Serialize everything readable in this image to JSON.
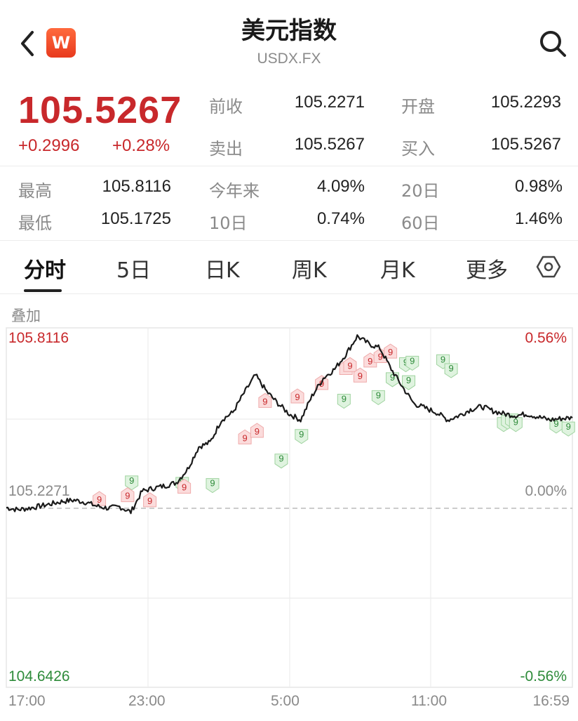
{
  "header": {
    "title": "美元指数",
    "subtitle": "USDX.FX",
    "logo_text": "W"
  },
  "quote": {
    "price": "105.5267",
    "change": "+0.2996",
    "change_pct": "+0.28%",
    "prev_close_label": "前收",
    "prev_close": "105.2271",
    "open_label": "开盘",
    "open": "105.2293",
    "ask_label": "卖出",
    "ask": "105.5267",
    "bid_label": "买入",
    "bid": "105.5267"
  },
  "stats": {
    "high_label": "最高",
    "high": "105.8116",
    "ytd_label": "今年来",
    "ytd": "4.09%",
    "d20_label": "20日",
    "d20": "0.98%",
    "low_label": "最低",
    "low": "105.1725",
    "d10_label": "10日",
    "d10": "0.74%",
    "d60_label": "60日",
    "d60": "1.46%"
  },
  "tabs": [
    {
      "label": "分时",
      "active": true
    },
    {
      "label": "5日"
    },
    {
      "label": "日K"
    },
    {
      "label": "周K"
    },
    {
      "label": "月K"
    },
    {
      "label": "更多"
    }
  ],
  "overlay_label": "叠加",
  "colors": {
    "up": "#c8282b",
    "down": "#2e8b3a",
    "line": "#1a1a1a"
  },
  "chart_data": {
    "type": "line",
    "y_max_label": "105.8116",
    "y_ref_label": "105.2271",
    "y_min_label": "104.6426",
    "pct_max_label": "0.56%",
    "pct_ref_label": "0.00%",
    "pct_min_label": "-0.56%",
    "x_ticks": [
      "17:00",
      "23:00",
      "5:00",
      "11:00",
      "16:59"
    ],
    "ylim": [
      104.6426,
      105.8116
    ],
    "reference": 105.2271,
    "x": [
      0,
      2,
      4,
      6,
      8,
      10,
      12,
      14,
      16,
      18,
      20,
      22,
      24,
      26,
      28,
      30,
      32,
      34,
      36,
      38,
      40,
      42,
      44,
      46,
      48,
      50,
      52,
      54,
      56,
      58,
      60,
      62,
      64,
      66,
      68,
      70,
      72,
      74,
      76,
      78,
      80,
      82,
      84,
      86,
      88,
      90,
      92,
      94,
      96,
      98,
      100
    ],
    "values": [
      105.227,
      105.22,
      105.225,
      105.232,
      105.24,
      105.248,
      105.252,
      105.245,
      105.232,
      105.225,
      105.23,
      105.212,
      105.282,
      105.292,
      105.3,
      105.31,
      105.355,
      105.43,
      105.445,
      105.52,
      105.545,
      105.61,
      105.67,
      105.615,
      105.575,
      105.54,
      105.52,
      105.6,
      105.66,
      105.69,
      105.74,
      105.8,
      105.775,
      105.76,
      105.69,
      105.63,
      105.575,
      105.56,
      105.545,
      105.52,
      105.535,
      105.555,
      105.565,
      105.55,
      105.54,
      105.535,
      105.54,
      105.53,
      105.52,
      105.525,
      105.527
    ],
    "buy_markers": [
      {
        "x": 31,
        "value": 105.305,
        "label": "9"
      },
      {
        "x": 43.5,
        "value": 105.3,
        "label": "9"
      },
      {
        "x": 51,
        "value": 105.296,
        "label": "9"
      },
      {
        "x": 68,
        "value": 105.378,
        "label": "9"
      },
      {
        "x": 73,
        "value": 105.46,
        "label": "9"
      },
      {
        "x": 83.5,
        "value": 105.578,
        "label": "9"
      },
      {
        "x": 92,
        "value": 105.59,
        "label": "9"
      },
      {
        "x": 99.5,
        "value": 105.64,
        "label": "9"
      },
      {
        "x": 95.5,
        "value": 105.65,
        "label": "9"
      },
      {
        "x": 98.8,
        "value": 105.7,
        "label": "9"
      },
      {
        "x": 100.4,
        "value": 105.705,
        "label": "9"
      },
      {
        "x": 108,
        "value": 105.71,
        "label": "9"
      },
      {
        "x": 110,
        "value": 105.68,
        "label": "9"
      },
      {
        "x": 123,
        "value": 105.5,
        "label": "9"
      },
      {
        "x": 124,
        "value": 105.508,
        "label": "9"
      },
      {
        "x": 125,
        "value": 105.512,
        "label": "9"
      },
      {
        "x": 126,
        "value": 105.5,
        "label": "9"
      },
      {
        "x": 136,
        "value": 105.495,
        "label": "9"
      },
      {
        "x": 139,
        "value": 105.485,
        "label": "9"
      }
    ],
    "sell_markers": [
      {
        "x": 23,
        "value": 105.262,
        "label": "9"
      },
      {
        "x": 30,
        "value": 105.275,
        "label": "9"
      },
      {
        "x": 35.5,
        "value": 105.258,
        "label": "9"
      },
      {
        "x": 44,
        "value": 105.303,
        "label": "9"
      },
      {
        "x": 59,
        "value": 105.468,
        "label": "9"
      },
      {
        "x": 62,
        "value": 105.49,
        "label": "9"
      },
      {
        "x": 64,
        "value": 105.59,
        "label": "9"
      },
      {
        "x": 72,
        "value": 105.605,
        "label": "9"
      },
      {
        "x": 78,
        "value": 105.65,
        "label": "9"
      },
      {
        "x": 84,
        "value": 105.7,
        "label": "9"
      },
      {
        "x": 85,
        "value": 105.71,
        "label": "9"
      },
      {
        "x": 87.5,
        "value": 105.675,
        "label": "9"
      },
      {
        "x": 90,
        "value": 105.725,
        "label": "9"
      },
      {
        "x": 92.5,
        "value": 105.74,
        "label": "9"
      },
      {
        "x": 95,
        "value": 105.755,
        "label": "9"
      }
    ]
  }
}
